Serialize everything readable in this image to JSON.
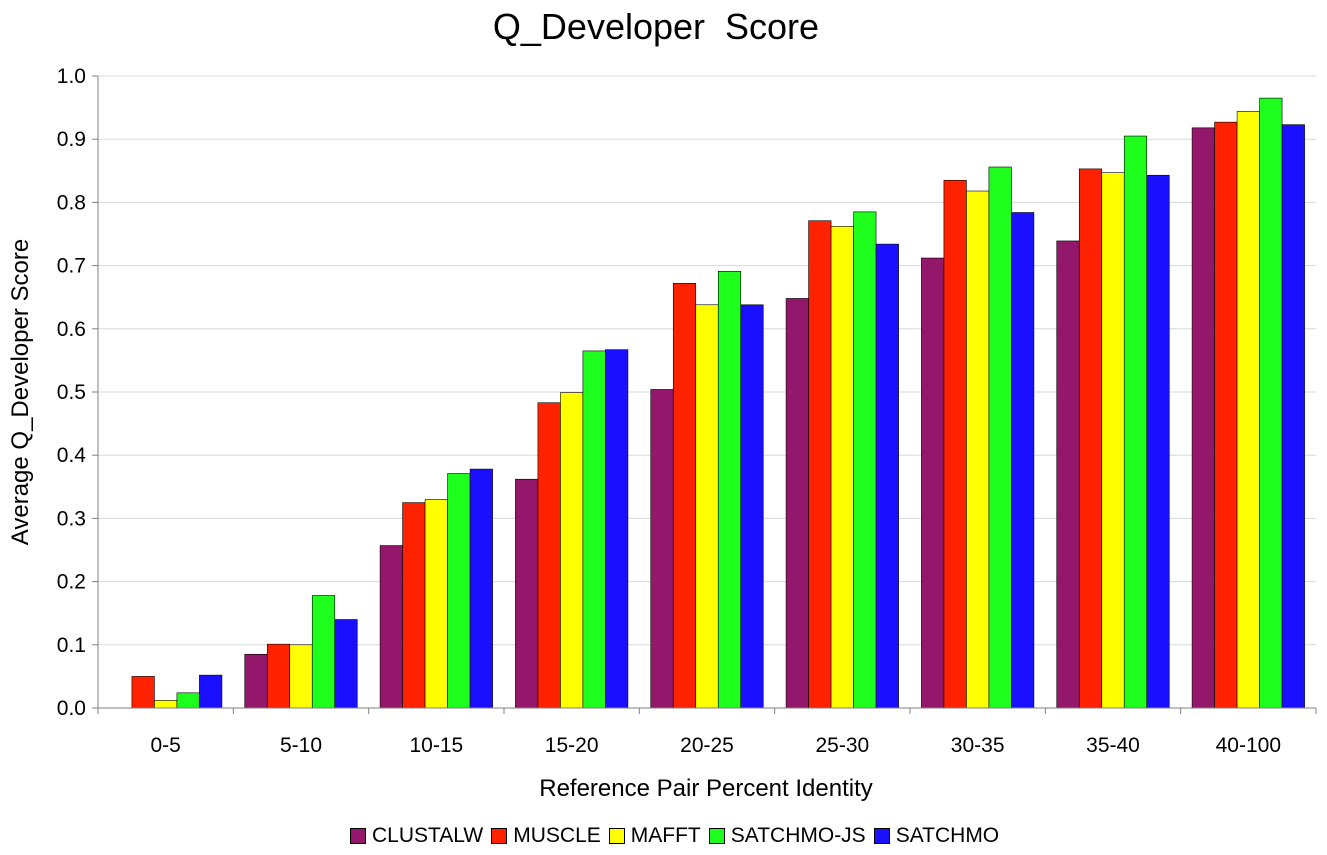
{
  "chart_data": {
    "type": "bar",
    "title": "Q_Developer  Score",
    "xlabel": "Reference Pair Percent Identity",
    "ylabel": "Average Q_Developer Score",
    "ylim": [
      0,
      1.0
    ],
    "yticks": [
      "0.0",
      "0.1",
      "0.2",
      "0.3",
      "0.4",
      "0.5",
      "0.6",
      "0.7",
      "0.8",
      "0.9",
      "1.0"
    ],
    "grid": true,
    "legend_position": "bottom",
    "categories": [
      "0-5",
      "5-10",
      "10-15",
      "15-20",
      "20-25",
      "25-30",
      "30-35",
      "35-40",
      "40-100"
    ],
    "series": [
      {
        "name": "CLUSTALW",
        "color": "#93176a",
        "values": [
          0.0,
          0.085,
          0.257,
          0.362,
          0.504,
          0.648,
          0.712,
          0.739,
          0.918
        ]
      },
      {
        "name": "MUSCLE",
        "color": "#ff2200",
        "values": [
          0.05,
          0.101,
          0.325,
          0.483,
          0.672,
          0.771,
          0.835,
          0.853,
          0.927
        ]
      },
      {
        "name": "MAFFT",
        "color": "#ffff00",
        "values": [
          0.012,
          0.1,
          0.33,
          0.499,
          0.638,
          0.762,
          0.818,
          0.847,
          0.944
        ]
      },
      {
        "name": "SATCHMO-JS",
        "color": "#1eff1e",
        "values": [
          0.024,
          0.178,
          0.371,
          0.565,
          0.691,
          0.785,
          0.856,
          0.905,
          0.965
        ]
      },
      {
        "name": "SATCHMO",
        "color": "#1a0fff",
        "values": [
          0.052,
          0.14,
          0.378,
          0.567,
          0.638,
          0.734,
          0.784,
          0.843,
          0.923
        ]
      }
    ]
  }
}
